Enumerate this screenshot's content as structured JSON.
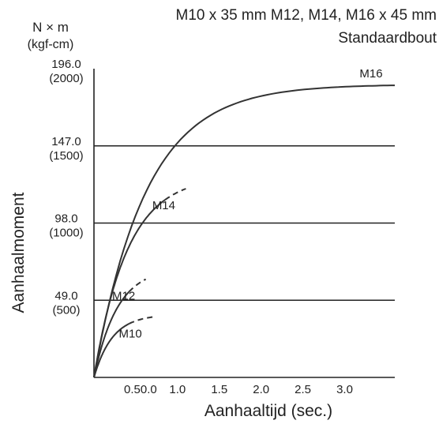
{
  "chart_data": {
    "type": "line",
    "title_line1": "M10 x 35 mm M12, M14, M16 x 45 mm",
    "title_line2": "Standaardbout",
    "y_unit_top": "N × m",
    "y_unit_bottom": "(kgf-cm)",
    "ylabel": "Aanhaalmoment",
    "xlabel": "Aanhaaltijd (sec.)",
    "xlim": [
      0,
      3.6
    ],
    "ylim": [
      0,
      196
    ],
    "y_ticks": [
      {
        "value": 49,
        "label": "49.0",
        "sub": "(500)"
      },
      {
        "value": 98,
        "label": "98.0",
        "sub": "(1000)"
      },
      {
        "value": 147,
        "label": "147.0",
        "sub": "(1500)"
      },
      {
        "value": 196,
        "label": "196.0",
        "sub": "(2000)"
      }
    ],
    "x_tick_labels": [
      {
        "value": 0.5,
        "label": "0.50.0"
      },
      {
        "value": 1.0,
        "label": "1.0"
      },
      {
        "value": 1.5,
        "label": "1.5"
      },
      {
        "value": 2.0,
        "label": "2.0"
      },
      {
        "value": 2.5,
        "label": "2.5"
      },
      {
        "value": 3.0,
        "label": "3.0"
      }
    ],
    "series": [
      {
        "name": "M16",
        "a": 186,
        "k": 0.62,
        "x_end": 3.6,
        "dash_from": null
      },
      {
        "name": "M14",
        "a": 128,
        "k": 0.4,
        "x_end": 1.1,
        "dash_from": 0.85
      },
      {
        "name": "M12",
        "a": 70,
        "k": 0.28,
        "x_end": 0.62,
        "dash_from": 0.42
      },
      {
        "name": "M10",
        "a": 40,
        "k": 0.22,
        "x_end": 0.7,
        "dash_from": 0.42
      }
    ]
  }
}
